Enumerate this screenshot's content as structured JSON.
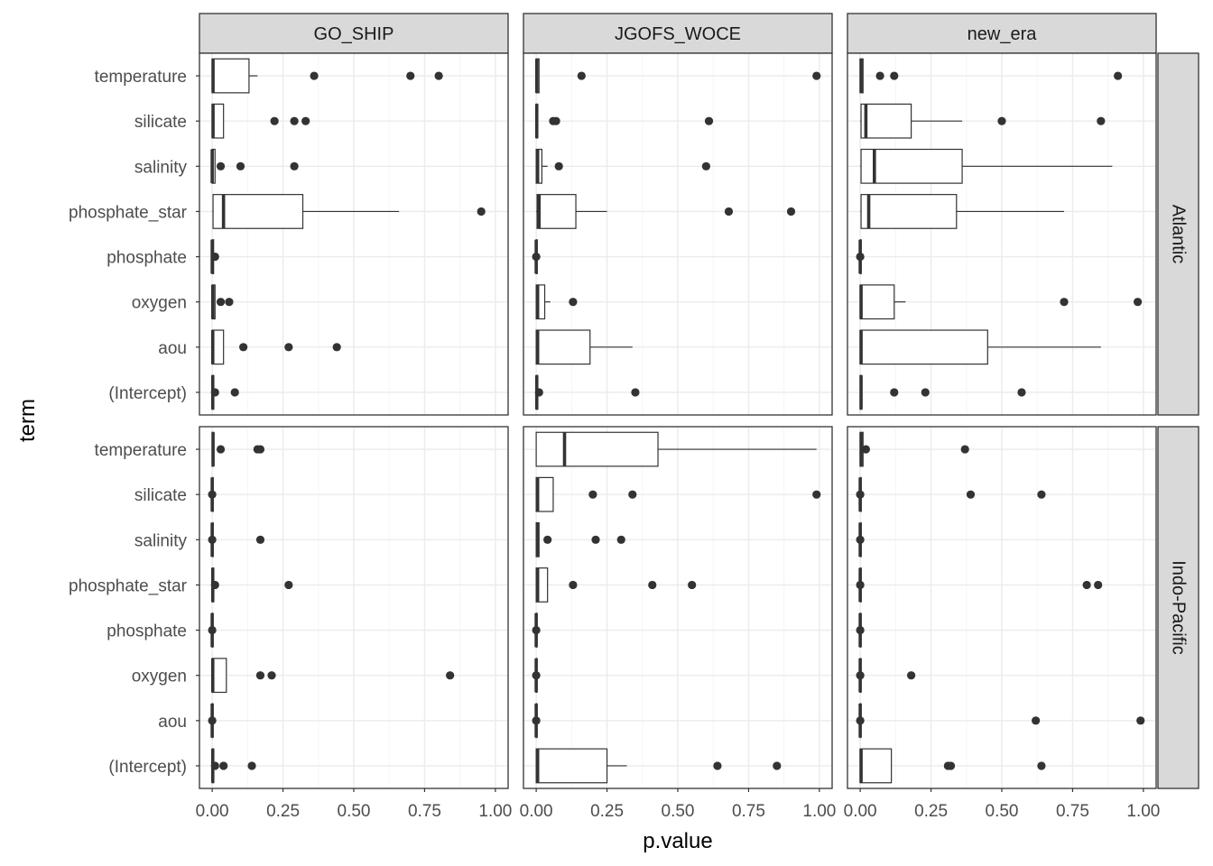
{
  "chart_data": {
    "type": "boxplot",
    "orientation": "horizontal",
    "xlabel": "p.value",
    "ylabel": "term",
    "xlim": [
      0,
      1
    ],
    "x_ticks": [
      0,
      0.25,
      0.5,
      0.75,
      1
    ],
    "x_tick_labels": [
      "0.00",
      "0.25",
      "0.50",
      "0.75",
      "1.00"
    ],
    "grid": true,
    "facet_cols": [
      "GO_SHIP",
      "JGOFS_WOCE",
      "new_era"
    ],
    "facet_rows": [
      "Atlantic",
      "Indo-Pacific"
    ],
    "terms": [
      "temperature",
      "silicate",
      "salinity",
      "phosphate_star",
      "phosphate",
      "oxygen",
      "aou",
      "(Intercept)"
    ],
    "panels": [
      {
        "row": "Atlantic",
        "col": "GO_SHIP",
        "boxes": {
          "temperature": {
            "min": 0.0,
            "q1": 0.0,
            "median": 0.003,
            "q3": 0.13,
            "max": 0.16,
            "outliers": [
              0.36,
              0.7,
              0.8
            ]
          },
          "silicate": {
            "min": 0.0,
            "q1": 0.0,
            "median": 0.003,
            "q3": 0.04,
            "max": 0.04,
            "outliers": [
              0.22,
              0.29,
              0.33
            ]
          },
          "salinity": {
            "min": 0.0,
            "q1": 0.0,
            "median": 0.0,
            "q3": 0.01,
            "max": 0.01,
            "outliers": [
              0.03,
              0.1,
              0.29
            ]
          },
          "phosphate_star": {
            "min": 0.0,
            "q1": 0.003,
            "median": 0.04,
            "q3": 0.32,
            "max": 0.66,
            "outliers": [
              0.95
            ]
          },
          "phosphate": {
            "min": 0.0,
            "q1": 0.0,
            "median": 0.0,
            "q3": 0.005,
            "max": 0.005,
            "outliers": [
              0.01
            ]
          },
          "oxygen": {
            "min": 0.0,
            "q1": 0.0,
            "median": 0.002,
            "q3": 0.01,
            "max": 0.01,
            "outliers": [
              0.03,
              0.06
            ]
          },
          "aou": {
            "min": 0.0,
            "q1": 0.0,
            "median": 0.002,
            "q3": 0.04,
            "max": 0.04,
            "outliers": [
              0.11,
              0.27,
              0.44
            ]
          },
          "(Intercept)": {
            "min": 0.0,
            "q1": 0.0,
            "median": 0.002,
            "q3": 0.005,
            "max": 0.005,
            "outliers": [
              0.01,
              0.08
            ]
          }
        }
      },
      {
        "row": "Atlantic",
        "col": "JGOFS_WOCE",
        "boxes": {
          "temperature": {
            "min": 0.0,
            "q1": 0.0,
            "median": 0.002,
            "q3": 0.01,
            "max": 0.01,
            "outliers": [
              0.16,
              0.99
            ]
          },
          "silicate": {
            "min": 0.0,
            "q1": 0.0,
            "median": 0.002,
            "q3": 0.005,
            "max": 0.005,
            "outliers": [
              0.06,
              0.07,
              0.61
            ]
          },
          "salinity": {
            "min": 0.0,
            "q1": 0.0,
            "median": 0.005,
            "q3": 0.02,
            "max": 0.04,
            "outliers": [
              0.08,
              0.6
            ]
          },
          "phosphate_star": {
            "min": 0.0,
            "q1": 0.003,
            "median": 0.01,
            "q3": 0.14,
            "max": 0.25,
            "outliers": [
              0.68,
              0.9
            ]
          },
          "phosphate": {
            "min": 0.0,
            "q1": 0.0,
            "median": 0.0,
            "q3": 0.003,
            "max": 0.003,
            "outliers": [
              0.0
            ]
          },
          "oxygen": {
            "min": 0.0,
            "q1": 0.0,
            "median": 0.005,
            "q3": 0.03,
            "max": 0.05,
            "outliers": [
              0.13
            ]
          },
          "aou": {
            "min": 0.0,
            "q1": 0.0,
            "median": 0.005,
            "q3": 0.19,
            "max": 0.34,
            "outliers": []
          },
          "(Intercept)": {
            "min": 0.0,
            "q1": 0.0,
            "median": 0.002,
            "q3": 0.005,
            "max": 0.005,
            "outliers": [
              0.01,
              0.35
            ]
          }
        }
      },
      {
        "row": "Atlantic",
        "col": "new_era",
        "boxes": {
          "temperature": {
            "min": 0.0,
            "q1": 0.0,
            "median": 0.003,
            "q3": 0.01,
            "max": 0.01,
            "outliers": [
              0.07,
              0.12,
              0.91
            ]
          },
          "silicate": {
            "min": 0.0,
            "q1": 0.003,
            "median": 0.02,
            "q3": 0.18,
            "max": 0.36,
            "outliers": [
              0.5,
              0.85
            ]
          },
          "salinity": {
            "min": 0.0,
            "q1": 0.003,
            "median": 0.05,
            "q3": 0.36,
            "max": 0.89,
            "outliers": []
          },
          "phosphate_star": {
            "min": 0.0,
            "q1": 0.003,
            "median": 0.03,
            "q3": 0.34,
            "max": 0.72,
            "outliers": []
          },
          "phosphate": {
            "min": 0.0,
            "q1": 0.0,
            "median": 0.0,
            "q3": 0.003,
            "max": 0.003,
            "outliers": [
              0.0
            ]
          },
          "oxygen": {
            "min": 0.0,
            "q1": 0.0,
            "median": 0.003,
            "q3": 0.12,
            "max": 0.16,
            "outliers": [
              0.72,
              0.98
            ]
          },
          "aou": {
            "min": 0.0,
            "q1": 0.0,
            "median": 0.003,
            "q3": 0.45,
            "max": 0.85,
            "outliers": []
          },
          "(Intercept)": {
            "min": 0.0,
            "q1": 0.0,
            "median": 0.003,
            "q3": 0.005,
            "max": 0.005,
            "outliers": [
              0.12,
              0.23,
              0.57
            ]
          }
        }
      },
      {
        "row": "Indo-Pacific",
        "col": "GO_SHIP",
        "boxes": {
          "temperature": {
            "min": 0.0,
            "q1": 0.0,
            "median": 0.003,
            "q3": 0.005,
            "max": 0.005,
            "outliers": [
              0.03,
              0.16,
              0.17
            ]
          },
          "silicate": {
            "min": 0.0,
            "q1": 0.0,
            "median": 0.0,
            "q3": 0.003,
            "max": 0.003,
            "outliers": [
              0.0
            ]
          },
          "salinity": {
            "min": 0.0,
            "q1": 0.0,
            "median": 0.0,
            "q3": 0.003,
            "max": 0.003,
            "outliers": [
              0.0,
              0.17
            ]
          },
          "phosphate_star": {
            "min": 0.0,
            "q1": 0.0,
            "median": 0.002,
            "q3": 0.005,
            "max": 0.005,
            "outliers": [
              0.01,
              0.27
            ]
          },
          "phosphate": {
            "min": 0.0,
            "q1": 0.0,
            "median": 0.0,
            "q3": 0.002,
            "max": 0.002,
            "outliers": [
              0.0
            ]
          },
          "oxygen": {
            "min": 0.0,
            "q1": 0.0,
            "median": 0.002,
            "q3": 0.05,
            "max": 0.05,
            "outliers": [
              0.17,
              0.21,
              0.84
            ]
          },
          "aou": {
            "min": 0.0,
            "q1": 0.0,
            "median": 0.0,
            "q3": 0.002,
            "max": 0.002,
            "outliers": [
              0.0
            ]
          },
          "(Intercept)": {
            "min": 0.0,
            "q1": 0.0,
            "median": 0.002,
            "q3": 0.005,
            "max": 0.005,
            "outliers": [
              0.01,
              0.04,
              0.14
            ]
          }
        }
      },
      {
        "row": "Indo-Pacific",
        "col": "JGOFS_WOCE",
        "boxes": {
          "temperature": {
            "min": 0.0,
            "q1": 0.0,
            "median": 0.1,
            "q3": 0.43,
            "max": 0.99,
            "outliers": []
          },
          "silicate": {
            "min": 0.0,
            "q1": 0.0,
            "median": 0.005,
            "q3": 0.06,
            "max": 0.06,
            "outliers": [
              0.2,
              0.34,
              0.99
            ]
          },
          "salinity": {
            "min": 0.0,
            "q1": 0.0,
            "median": 0.005,
            "q3": 0.01,
            "max": 0.01,
            "outliers": [
              0.04,
              0.21,
              0.3
            ]
          },
          "phosphate_star": {
            "min": 0.0,
            "q1": 0.0,
            "median": 0.005,
            "q3": 0.04,
            "max": 0.04,
            "outliers": [
              0.13,
              0.41,
              0.55
            ]
          },
          "phosphate": {
            "min": 0.0,
            "q1": 0.0,
            "median": 0.0,
            "q3": 0.002,
            "max": 0.002,
            "outliers": [
              0.0
            ]
          },
          "oxygen": {
            "min": 0.0,
            "q1": 0.0,
            "median": 0.0,
            "q3": 0.002,
            "max": 0.002,
            "outliers": [
              0.0
            ]
          },
          "aou": {
            "min": 0.0,
            "q1": 0.0,
            "median": 0.0,
            "q3": 0.002,
            "max": 0.002,
            "outliers": [
              0.0
            ]
          },
          "(Intercept)": {
            "min": 0.0,
            "q1": 0.0,
            "median": 0.005,
            "q3": 0.25,
            "max": 0.32,
            "outliers": [
              0.64,
              0.85
            ]
          }
        }
      },
      {
        "row": "Indo-Pacific",
        "col": "new_era",
        "boxes": {
          "temperature": {
            "min": 0.0,
            "q1": 0.0,
            "median": 0.003,
            "q3": 0.01,
            "max": 0.01,
            "outliers": [
              0.02,
              0.37
            ]
          },
          "silicate": {
            "min": 0.0,
            "q1": 0.0,
            "median": 0.0,
            "q3": 0.003,
            "max": 0.003,
            "outliers": [
              0.0,
              0.39,
              0.64
            ]
          },
          "salinity": {
            "min": 0.0,
            "q1": 0.0,
            "median": 0.0,
            "q3": 0.003,
            "max": 0.003,
            "outliers": [
              0.0
            ]
          },
          "phosphate_star": {
            "min": 0.0,
            "q1": 0.0,
            "median": 0.0,
            "q3": 0.003,
            "max": 0.003,
            "outliers": [
              0.0,
              0.8,
              0.84
            ]
          },
          "phosphate": {
            "min": 0.0,
            "q1": 0.0,
            "median": 0.0,
            "q3": 0.002,
            "max": 0.002,
            "outliers": [
              0.0
            ]
          },
          "oxygen": {
            "min": 0.0,
            "q1": 0.0,
            "median": 0.0,
            "q3": 0.002,
            "max": 0.002,
            "outliers": [
              0.0,
              0.18
            ]
          },
          "aou": {
            "min": 0.0,
            "q1": 0.0,
            "median": 0.0,
            "q3": 0.002,
            "max": 0.002,
            "outliers": [
              0.0,
              0.62,
              0.99
            ]
          },
          "(Intercept)": {
            "min": 0.0,
            "q1": 0.0,
            "median": 0.003,
            "q3": 0.11,
            "max": 0.11,
            "outliers": [
              0.31,
              0.32,
              0.64
            ]
          }
        }
      }
    ],
    "colors": {
      "box_fill": "#ffffff",
      "box_line": "#333333",
      "outlier": "#333333",
      "strip_fill": "#d9d9d9",
      "grid_major": "#ebebeb",
      "grid_minor": "#f5f5f5"
    }
  }
}
